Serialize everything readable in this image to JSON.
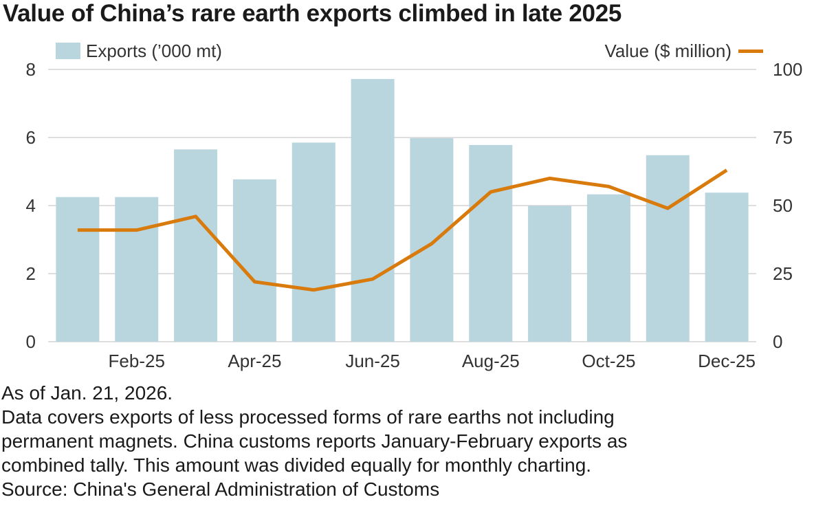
{
  "chart_data": {
    "type": "bar",
    "title": "Value of China’s rare earth exports climbed in late 2025",
    "categories": [
      "Jan-25",
      "Feb-25",
      "Mar-25",
      "Apr-25",
      "May-25",
      "Jun-25",
      "Jul-25",
      "Aug-25",
      "Sep-25",
      "Oct-25",
      "Nov-25",
      "Dec-25"
    ],
    "x_tick_labels": [
      "Feb-25",
      "Apr-25",
      "Jun-25",
      "Aug-25",
      "Oct-25",
      "Dec-25"
    ],
    "series": [
      {
        "name": "Exports (’000 mt)",
        "type": "bar",
        "axis": "left",
        "values": [
          4.25,
          4.25,
          5.65,
          4.77,
          5.85,
          7.72,
          5.98,
          5.78,
          3.99,
          4.33,
          5.48,
          4.38
        ]
      },
      {
        "name": "Value ($ million)",
        "type": "line",
        "axis": "right",
        "values": [
          41,
          41,
          46,
          22,
          19,
          23,
          36,
          55,
          60,
          57,
          49,
          63
        ]
      }
    ],
    "y_left": {
      "min": 0,
      "max": 8,
      "ticks": [
        "0",
        "2",
        "4",
        "6",
        "8"
      ]
    },
    "y_right": {
      "min": 0,
      "max": 100,
      "ticks": [
        "0",
        "25",
        "50",
        "75",
        "100"
      ]
    },
    "grid": true,
    "legend_placement": "top",
    "colors": {
      "bar": "#b9d6de",
      "line": "#d97a0c",
      "grid": "#d4d4d4",
      "text": "#333333"
    }
  },
  "notes": {
    "as_of": "As of Jan. 21, 2026.",
    "description_lines": [
      "Data covers exports of less processed forms of rare earths not including",
      "permanent magnets. China customs reports January-February exports as",
      "combined tally. This amount was divided equally for monthly charting."
    ],
    "source": "Source: China's General Administration of Customs"
  }
}
